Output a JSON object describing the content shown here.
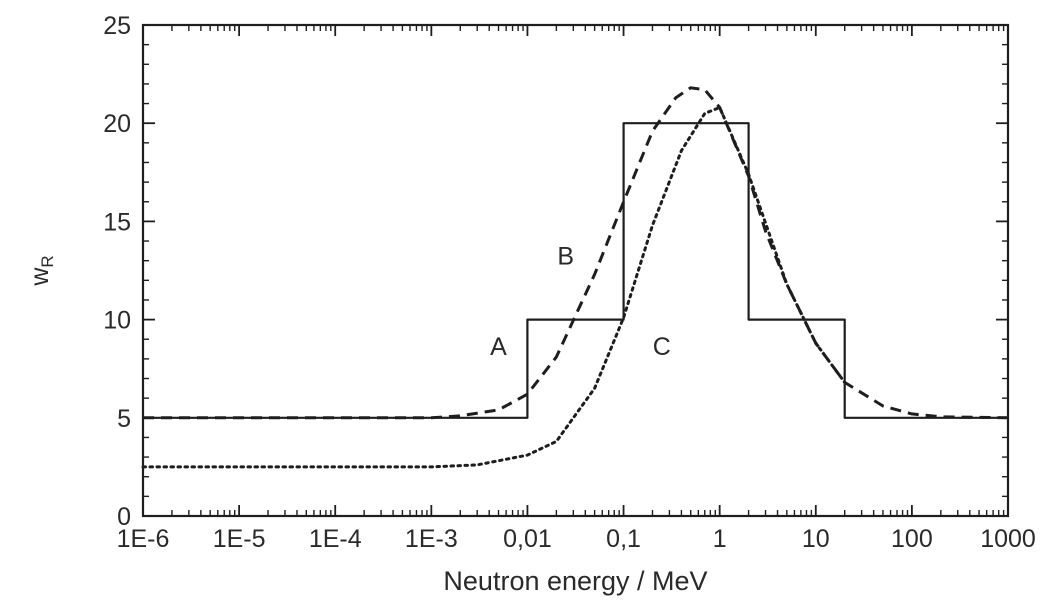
{
  "chart_data": {
    "type": "line",
    "title": "",
    "xlabel": "Neutron energy / MeV",
    "ylabel": {
      "main": "w",
      "sub": "R"
    },
    "x_scale": "log",
    "xlim": [
      1e-06,
      1000
    ],
    "ylim": [
      0,
      25
    ],
    "x_tick_labels": [
      "1E-6",
      "1E-5",
      "1E-4",
      "1E-3",
      "0,01",
      "0,1",
      "1",
      "10",
      "100",
      "1000"
    ],
    "y_tick_labels": [
      "0",
      "5",
      "10",
      "15",
      "20",
      "25"
    ],
    "x_ticks": [
      1e-06,
      1e-05,
      0.0001,
      0.001,
      0.01,
      0.1,
      1,
      10,
      100,
      1000
    ],
    "y_ticks": [
      0,
      5,
      10,
      15,
      20,
      25
    ],
    "grid": false,
    "legend": "none",
    "annotations": [
      {
        "text": "A",
        "x": 0.005,
        "y": 8.2
      },
      {
        "text": "B",
        "x": 0.025,
        "y": 12.8
      },
      {
        "text": "C",
        "x": 0.25,
        "y": 8.2
      }
    ],
    "series": [
      {
        "label": "A",
        "style": "solid",
        "x": [
          1e-06,
          0.01,
          0.01,
          0.1,
          0.1,
          2,
          2,
          20,
          20,
          1000
        ],
        "y": [
          5,
          5,
          10,
          10,
          20,
          20,
          10,
          10,
          5,
          5
        ]
      },
      {
        "label": "B",
        "style": "dashed",
        "x": [
          1e-06,
          0.0001,
          0.001,
          0.002,
          0.005,
          0.01,
          0.02,
          0.05,
          0.1,
          0.2,
          0.35,
          0.5,
          0.7,
          1,
          2,
          3,
          5,
          10,
          20,
          50,
          100,
          200,
          1000
        ],
        "y": [
          5,
          5,
          5,
          5.1,
          5.4,
          6.2,
          8.1,
          12.3,
          16,
          19.6,
          21.3,
          21.8,
          21.7,
          20.8,
          17.3,
          14.5,
          11.8,
          8.8,
          6.8,
          5.6,
          5.2,
          5.05,
          5
        ]
      },
      {
        "label": "C",
        "style": "dotted",
        "x": [
          1e-06,
          0.0001,
          0.001,
          0.003,
          0.01,
          0.02,
          0.05,
          0.1,
          0.2,
          0.4,
          0.7,
          1,
          2,
          5,
          10,
          20
        ],
        "y": [
          2.5,
          2.5,
          2.5,
          2.6,
          3.1,
          3.8,
          6.5,
          10.1,
          14.8,
          18.6,
          20.5,
          20.8,
          17.4,
          11.8,
          8.8,
          6.8
        ]
      }
    ]
  }
}
